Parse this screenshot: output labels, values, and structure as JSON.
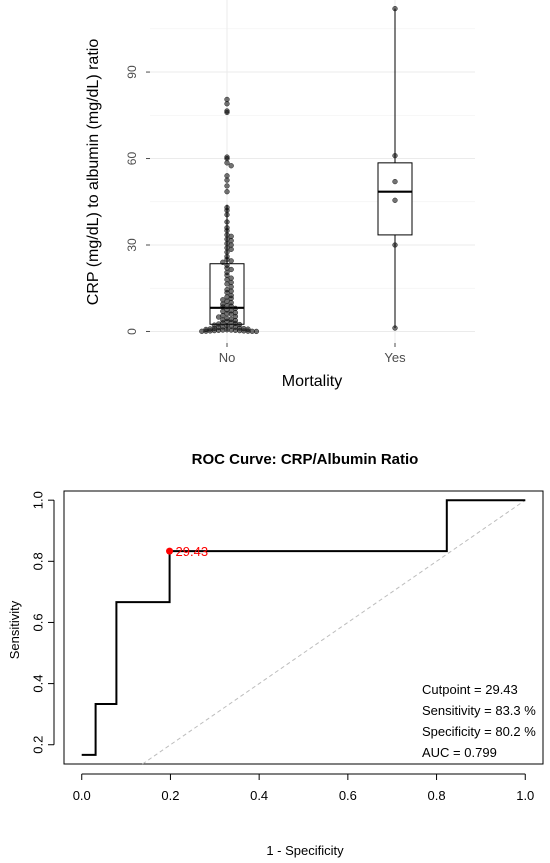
{
  "chart_data": [
    {
      "type": "boxplot",
      "xlabel": "Mortality",
      "ylabel": "CRP (mg/dL) to albumin (mg/dL) ratio",
      "categories": [
        "No",
        "Yes"
      ],
      "yticks": [
        "0",
        "30",
        "60",
        "90"
      ],
      "ylim": [
        -4,
        115
      ],
      "grid": true,
      "boxes": [
        {
          "category": "No",
          "min": 0.2,
          "q1": 2.5,
          "median": 8.2,
          "q3": 23.5,
          "max": 44.0
        },
        {
          "category": "Yes",
          "min": 1.2,
          "q1": 33.5,
          "median": 48.5,
          "q3": 58.5,
          "max": 112.0
        }
      ],
      "points": [
        {
          "category": "No",
          "values": [
            80.5,
            79,
            76.5,
            76,
            60.5,
            60,
            58.5,
            57.5,
            54,
            52.5,
            50.5,
            48.5,
            43,
            42,
            40.5,
            38,
            36,
            35,
            33.5,
            33,
            32,
            31.5,
            30.5,
            30,
            29,
            28.5,
            27.5,
            26,
            25,
            24.5,
            24,
            23,
            22,
            21.5,
            20.5,
            19.5,
            18.5,
            18,
            17,
            16.5,
            15.5,
            14.5,
            14,
            13.5,
            12.5,
            12,
            11.5,
            11,
            10.5,
            10,
            9.5,
            9,
            8.8,
            8.5,
            8,
            7.5,
            7.2,
            7,
            6.5,
            6.2,
            6,
            5.5,
            5.2,
            5,
            4.5,
            4.2,
            4,
            3.8,
            3.5,
            3.2,
            3,
            2.8,
            2.6,
            2.4,
            2.2,
            2,
            1.8,
            1.6,
            1.5,
            1.4,
            1.2,
            1.1,
            1,
            0.9,
            0.8,
            0.7,
            0.6,
            0.5,
            0.5,
            0.4,
            0.4,
            0.3,
            0.3,
            0.2,
            0.2,
            0.1,
            0.1,
            0.05,
            0.05,
            0.02
          ]
        },
        {
          "category": "Yes",
          "values": [
            112,
            61,
            52,
            45.5,
            30,
            1.2
          ]
        }
      ]
    },
    {
      "type": "line",
      "title": "ROC Curve: CRP/Albumin Ratio",
      "xlabel": "1 - Specificity",
      "ylabel": "Sensitivity",
      "xticks": [
        "0.0",
        "0.2",
        "0.4",
        "0.6",
        "0.8",
        "1.0"
      ],
      "yticks": [
        "0.2",
        "0.4",
        "0.6",
        "0.8",
        "1.0"
      ],
      "xlim": [
        -0.04,
        1.04
      ],
      "ylim": [
        0.137,
        1.03
      ],
      "roc_points": [
        [
          0.0,
          0.1667
        ],
        [
          0.0312,
          0.1667
        ],
        [
          0.0312,
          0.3333
        ],
        [
          0.0781,
          0.3333
        ],
        [
          0.0781,
          0.6667
        ],
        [
          0.198,
          0.6667
        ],
        [
          0.198,
          0.8333
        ],
        [
          0.823,
          0.8333
        ],
        [
          0.823,
          1.0
        ],
        [
          1.0,
          1.0
        ]
      ],
      "reference_line": [
        [
          0,
          0
        ],
        [
          1,
          1
        ]
      ],
      "cutpoint": {
        "x": 0.198,
        "y": 0.8333,
        "label": "29.43",
        "color": "#ff0000"
      },
      "annotations": [
        "Cutpoint = 29.43",
        "Sensitivity = 83.3 %",
        "Specificity = 80.2 %",
        "AUC = 0.799"
      ]
    }
  ]
}
